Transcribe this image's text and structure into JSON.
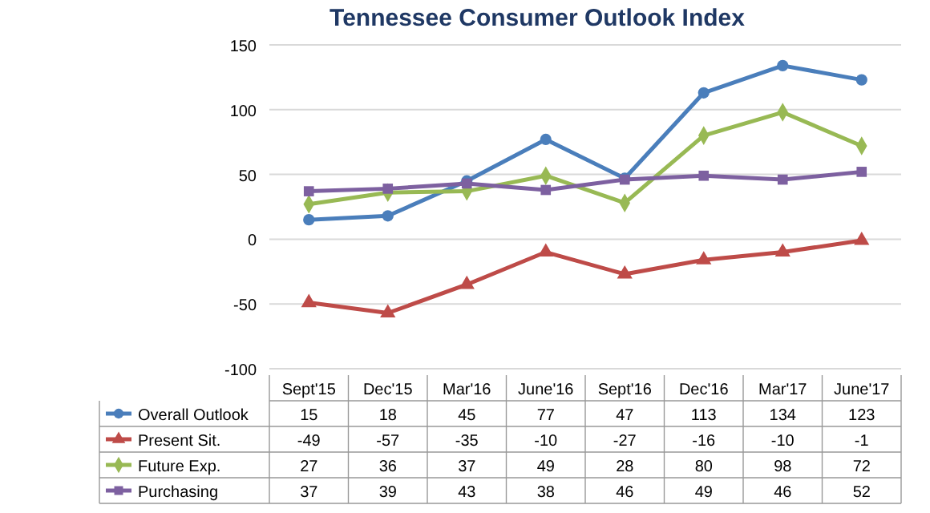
{
  "chart_data": {
    "type": "line",
    "title": "Tennessee Consumer Outlook Index",
    "categories": [
      "Sept'15",
      "Dec'15",
      "Mar'16",
      "June'16",
      "Sept'16",
      "Dec'16",
      "Mar'17",
      "June'17"
    ],
    "series": [
      {
        "name": "Overall Outlook",
        "color": "#4a7ebb",
        "marker": "circle",
        "values": [
          15,
          18,
          45,
          77,
          47,
          113,
          134,
          123
        ]
      },
      {
        "name": "Present Sit.",
        "color": "#be4b48",
        "marker": "triangle",
        "values": [
          -49,
          -57,
          -35,
          -10,
          -27,
          -16,
          -10,
          -1
        ]
      },
      {
        "name": "Future Exp.",
        "color": "#98b954",
        "marker": "diamond",
        "values": [
          27,
          36,
          37,
          49,
          28,
          80,
          98,
          72
        ]
      },
      {
        "name": "Purchasing",
        "color": "#7d60a0",
        "marker": "square",
        "values": [
          37,
          39,
          43,
          38,
          46,
          49,
          46,
          52
        ]
      }
    ],
    "ylim": [
      -100,
      150
    ],
    "yticks": [
      -100,
      -50,
      0,
      50,
      100,
      150
    ],
    "grid": "y",
    "legend": "bottom left",
    "data_labels": true,
    "line_style": "solid"
  }
}
